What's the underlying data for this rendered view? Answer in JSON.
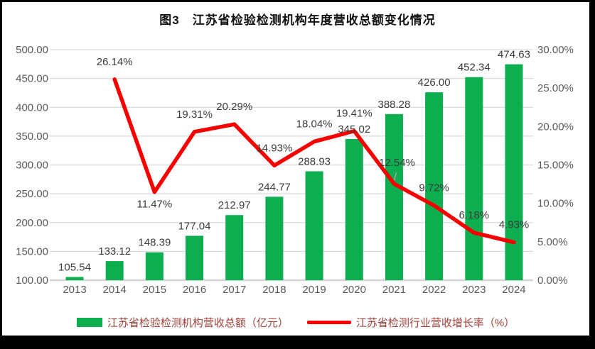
{
  "title": "图3　江苏省检验检测机构年度营收总额变化情况",
  "colors": {
    "bar": "#0CAE50",
    "line": "#F60000",
    "grid": "#D9D9D9",
    "baseline": "#D2D2D2",
    "axis_text": "#595959",
    "data_label": "#3B3B3B",
    "legend_text": "#A0413A",
    "leader": "#A6A6A6",
    "panel_bg": "#FFFFFF",
    "outer_bg": "#000000"
  },
  "chart_data": {
    "type": "bar+line combo",
    "title": "图3　江苏省检验检测机构年度营收总额变化情况",
    "categories": [
      "2013",
      "2014",
      "2015",
      "2016",
      "2017",
      "2018",
      "2019",
      "2020",
      "2021",
      "2022",
      "2023",
      "2024"
    ],
    "series": [
      {
        "name": "江苏省检验检测机构营收总额（亿元）",
        "type": "bar",
        "axis": "left",
        "values": [
          105.54,
          133.12,
          148.39,
          177.04,
          212.97,
          244.77,
          288.93,
          345.02,
          388.28,
          426.0,
          452.34,
          474.63
        ],
        "labels": [
          "105.54",
          "133.12",
          "148.39",
          "177.04",
          "212.97",
          "244.77",
          "288.93",
          "345.02",
          "388.28",
          "426.00",
          "452.34",
          "474.63"
        ]
      },
      {
        "name": "江苏省检测行业营收增长率（%）",
        "type": "line",
        "axis": "right",
        "values": [
          null,
          26.14,
          11.47,
          19.31,
          20.29,
          14.93,
          18.04,
          19.41,
          12.54,
          9.72,
          6.18,
          4.93
        ],
        "labels": [
          "",
          "26.14%",
          "11.47%",
          "19.31%",
          "20.29%",
          "14.93%",
          "18.04%",
          "19.41%",
          "12.54%",
          "9.72%",
          "6.18%",
          "4.93%"
        ]
      }
    ],
    "left_axis": {
      "min": 100,
      "max": 500,
      "step": 50,
      "ticks": [
        "500.00",
        "450.00",
        "400.00",
        "350.00",
        "300.00",
        "250.00",
        "200.00",
        "150.00",
        "100.00"
      ]
    },
    "right_axis": {
      "min": 0,
      "max": 30,
      "step": 5,
      "ticks": [
        "30.00%",
        "25.00%",
        "20.00%",
        "15.00%",
        "10.00%",
        "5.00%",
        "0.00%"
      ]
    },
    "grid": true,
    "legend_position": "bottom"
  },
  "legend": {
    "items": [
      {
        "label": "江苏省检验检测机构营收总额（亿元）",
        "swatch": "bar"
      },
      {
        "label": "江苏省检测行业营收增长率（%）",
        "swatch": "line"
      }
    ]
  }
}
